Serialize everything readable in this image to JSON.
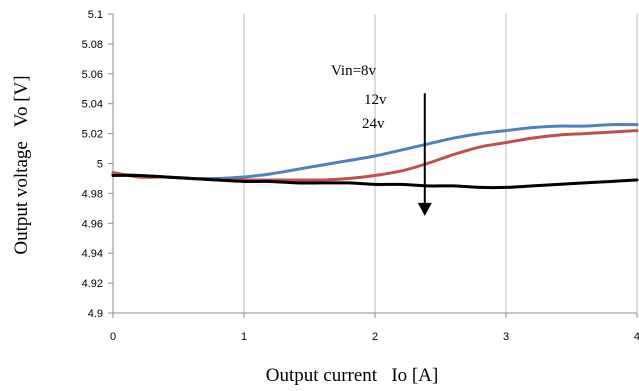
{
  "chart_data": {
    "type": "line",
    "xlabel": "Output current   Io [A]",
    "ylabel": "Output voltage   Vo [V]",
    "xlim": [
      0,
      4
    ],
    "ylim": [
      4.9,
      5.1
    ],
    "x_ticks": [
      "0",
      "1",
      "2",
      "3",
      "4"
    ],
    "y_ticks": [
      "4.9",
      "4.92",
      "4.94",
      "4.96",
      "4.98",
      "5",
      "5.02",
      "5.04",
      "5.06",
      "5.08",
      "5.1"
    ],
    "grid": {
      "vertical": true,
      "horizontal": false
    },
    "legend": "none",
    "annotations": [
      "Vin=8v",
      "12v",
      "24v"
    ],
    "arrow": {
      "x": 2.38,
      "y_start": 5.047,
      "y_end": 4.965,
      "direction": "down"
    },
    "series": [
      {
        "name": "Vin=8v",
        "color": "#4f81bd",
        "x": [
          0,
          0.2,
          0.4,
          0.6,
          0.8,
          1.0,
          1.2,
          1.4,
          1.6,
          1.8,
          2.0,
          2.2,
          2.4,
          2.6,
          2.8,
          3.0,
          3.2,
          3.4,
          3.6,
          3.8,
          4.0
        ],
        "y": [
          4.993,
          4.992,
          4.991,
          4.99,
          4.99,
          4.991,
          4.993,
          4.996,
          4.999,
          5.002,
          5.005,
          5.009,
          5.013,
          5.017,
          5.02,
          5.022,
          5.024,
          5.025,
          5.025,
          5.026,
          5.026
        ]
      },
      {
        "name": "12v",
        "color": "#c0504d",
        "x": [
          0,
          0.2,
          0.4,
          0.6,
          0.8,
          1.0,
          1.2,
          1.4,
          1.6,
          1.8,
          2.0,
          2.2,
          2.4,
          2.6,
          2.8,
          3.0,
          3.2,
          3.4,
          3.6,
          3.8,
          4.0
        ],
        "y": [
          4.994,
          4.991,
          4.991,
          4.99,
          4.989,
          4.989,
          4.989,
          4.989,
          4.989,
          4.99,
          4.992,
          4.995,
          5.0,
          5.006,
          5.011,
          5.014,
          5.017,
          5.019,
          5.02,
          5.021,
          5.022
        ]
      },
      {
        "name": "24v",
        "color": "#000000",
        "x": [
          0,
          0.2,
          0.4,
          0.6,
          0.8,
          1.0,
          1.2,
          1.4,
          1.6,
          1.8,
          2.0,
          2.2,
          2.4,
          2.6,
          2.8,
          3.0,
          3.2,
          3.4,
          3.6,
          3.8,
          4.0
        ],
        "y": [
          4.992,
          4.992,
          4.991,
          4.99,
          4.989,
          4.988,
          4.988,
          4.987,
          4.987,
          4.987,
          4.986,
          4.986,
          4.985,
          4.985,
          4.984,
          4.984,
          4.985,
          4.986,
          4.987,
          4.988,
          4.989
        ]
      }
    ]
  }
}
